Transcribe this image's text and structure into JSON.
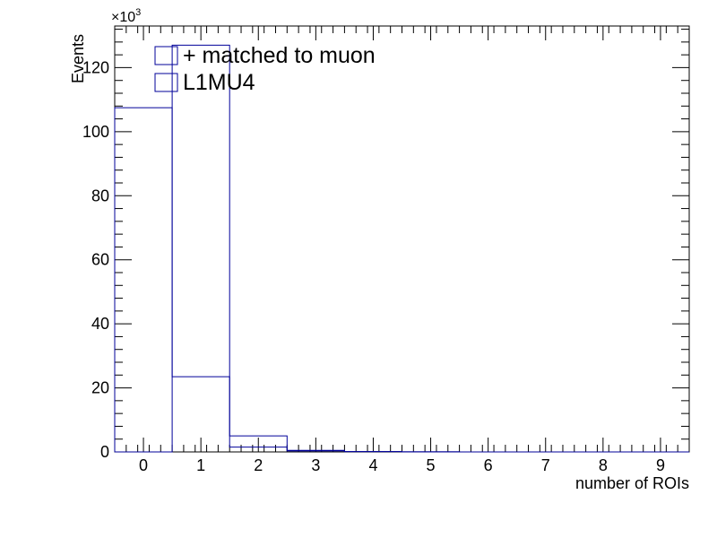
{
  "chart_data": {
    "type": "histogram",
    "xlabel": "number of ROIs",
    "ylabel": "Events",
    "y_multiplier_label": "×10",
    "y_multiplier_exponent": "3",
    "xlim": [
      -0.5,
      9.5
    ],
    "ylim": [
      0,
      133
    ],
    "x_ticks": [
      "0",
      "1",
      "2",
      "3",
      "4",
      "5",
      "6",
      "7",
      "8",
      "9"
    ],
    "y_ticks": [
      "0",
      "20",
      "40",
      "60",
      "80",
      "100",
      "120"
    ],
    "bin_edges": [
      -0.5,
      0.5,
      1.5,
      2.5,
      3.5,
      4.5,
      5.5,
      6.5,
      7.5,
      8.5,
      9.5
    ],
    "series": [
      {
        "name": "+ matched to muon",
        "values": [
          0,
          127,
          1.5,
          0.3,
          0.1,
          0.05,
          0,
          0,
          0,
          0
        ],
        "color": "#000099"
      },
      {
        "name": "L1MU4",
        "values": [
          107.5,
          23.5,
          5,
          0.5,
          0.1,
          0.05,
          0,
          0,
          0,
          0
        ],
        "color": "#000099"
      }
    ],
    "legend_position": "top-left",
    "grid": false
  }
}
